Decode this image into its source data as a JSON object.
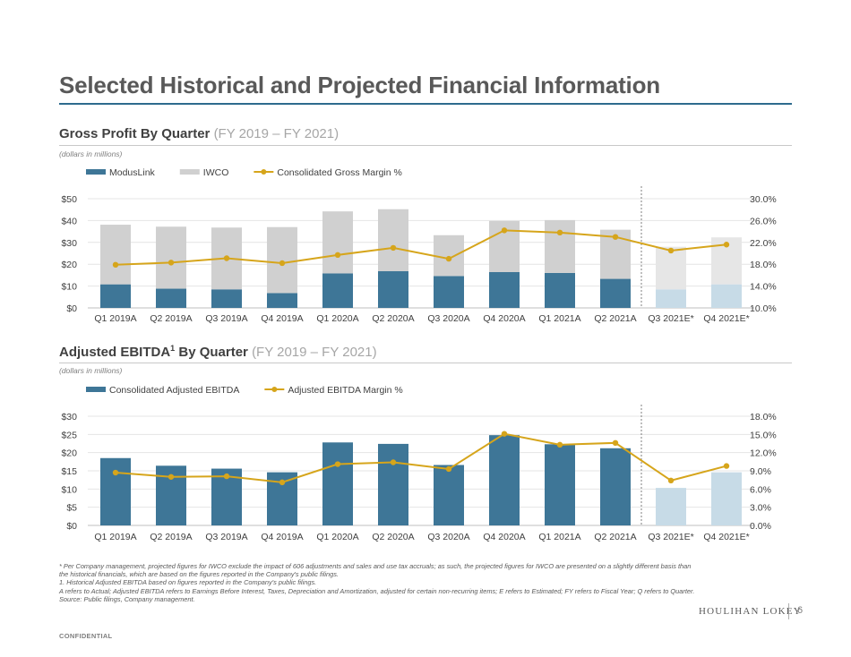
{
  "page": {
    "title": "Selected Historical and Projected Financial Information",
    "confidential": "CONFIDENTIAL",
    "logo": "HOULIHAN LOKEY",
    "page_number": "6"
  },
  "sections": [
    {
      "title": "Gross Profit By Quarter",
      "range": "(FY 2019 – FY 2021)",
      "units": "(dollars in millions)"
    },
    {
      "title": "Adjusted EBITDA",
      "sup": "1",
      "title_rest": " By Quarter",
      "range": "(FY 2019 – FY 2021)",
      "units": "(dollars in millions)"
    }
  ],
  "footnotes": [
    "* Per Company management, projected figures for IWCO exclude the impact of 606 adjustments and sales and use tax accruals; as such, the projected figures for IWCO are presented on a slightly different basis than",
    "  the historical financials, which are based on the figures reported in the Company's public filings.",
    "1. Historical Adjusted EBITDA based on figures reported in the Company's public filings.",
    "A refers to Actual; Adjusted EBITDA refers to Earnings Before Interest, Taxes, Depreciation and Amortization, adjusted for certain non-recurring items; E refers to Estimated; FY refers to Fiscal Year; Q refers to Quarter.",
    "Source: Public filings, Company management."
  ],
  "colors": {
    "bar_actual": "#3e7697",
    "bar_projected": "#c7dbe7",
    "iwco_actual": "#d0d0d0",
    "iwco_projected": "#e6e6e6",
    "line": "#d6a51b",
    "grid": "#e4e4e4"
  },
  "chart_data": [
    {
      "type": "bar",
      "stacked": true,
      "categories": [
        "Q1 2019A",
        "Q2 2019A",
        "Q3 2019A",
        "Q4 2019A",
        "Q1 2020A",
        "Q2 2020A",
        "Q3 2020A",
        "Q4 2020A",
        "Q1 2021A",
        "Q2 2021A",
        "Q3 2021E*",
        "Q4 2021E*"
      ],
      "projected_from_index": 10,
      "series": [
        {
          "name": "ModusLink",
          "kind": "bar",
          "axis": "left",
          "values": [
            10.8,
            8.8,
            8.5,
            6.8,
            15.8,
            16.8,
            14.6,
            16.4,
            16.0,
            13.3,
            8.5,
            10.8
          ]
        },
        {
          "name": "IWCO",
          "kind": "bar",
          "axis": "left",
          "values": [
            27.3,
            28.4,
            28.3,
            30.2,
            28.4,
            28.4,
            18.7,
            23.4,
            24.2,
            22.5,
            19.5,
            21.5
          ]
        },
        {
          "name": "Consolidated Gross Margin %",
          "kind": "line",
          "axis": "right",
          "values": [
            17.9,
            18.3,
            19.1,
            18.2,
            19.7,
            21.0,
            19.0,
            24.2,
            23.8,
            23.0,
            20.5,
            21.6
          ]
        }
      ],
      "ylim": [
        0,
        50
      ],
      "yticks": [
        "$0",
        "$10",
        "$20",
        "$30",
        "$40",
        "$50"
      ],
      "y2lim": [
        10,
        30
      ],
      "y2ticks": [
        "10.0%",
        "14.0%",
        "18.0%",
        "22.0%",
        "26.0%",
        "30.0%"
      ],
      "legend": "top-left",
      "grid": true
    },
    {
      "type": "bar",
      "categories": [
        "Q1 2019A",
        "Q2 2019A",
        "Q3 2019A",
        "Q4 2019A",
        "Q1 2020A",
        "Q2 2020A",
        "Q3 2020A",
        "Q4 2020A",
        "Q1 2021A",
        "Q2 2021A",
        "Q3 2021E*",
        "Q4 2021E*"
      ],
      "projected_from_index": 10,
      "series": [
        {
          "name": "Consolidated Adjusted EBITDA",
          "kind": "bar",
          "axis": "left",
          "values": [
            18.5,
            16.4,
            15.6,
            14.6,
            22.8,
            22.4,
            16.6,
            24.8,
            22.3,
            21.2,
            10.3,
            14.6
          ]
        },
        {
          "name": "Adjusted EBITDA Margin %",
          "kind": "line",
          "axis": "right",
          "values": [
            8.7,
            8.0,
            8.1,
            7.1,
            10.1,
            10.4,
            9.3,
            15.1,
            13.3,
            13.6,
            7.4,
            9.8
          ]
        }
      ],
      "ylim": [
        0,
        30
      ],
      "yticks": [
        "$0",
        "$5",
        "$10",
        "$15",
        "$20",
        "$25",
        "$30"
      ],
      "y2lim": [
        0,
        18
      ],
      "y2ticks": [
        "0.0%",
        "3.0%",
        "6.0%",
        "9.0%",
        "12.0%",
        "15.0%",
        "18.0%"
      ],
      "legend": "top-left",
      "grid": true
    }
  ]
}
